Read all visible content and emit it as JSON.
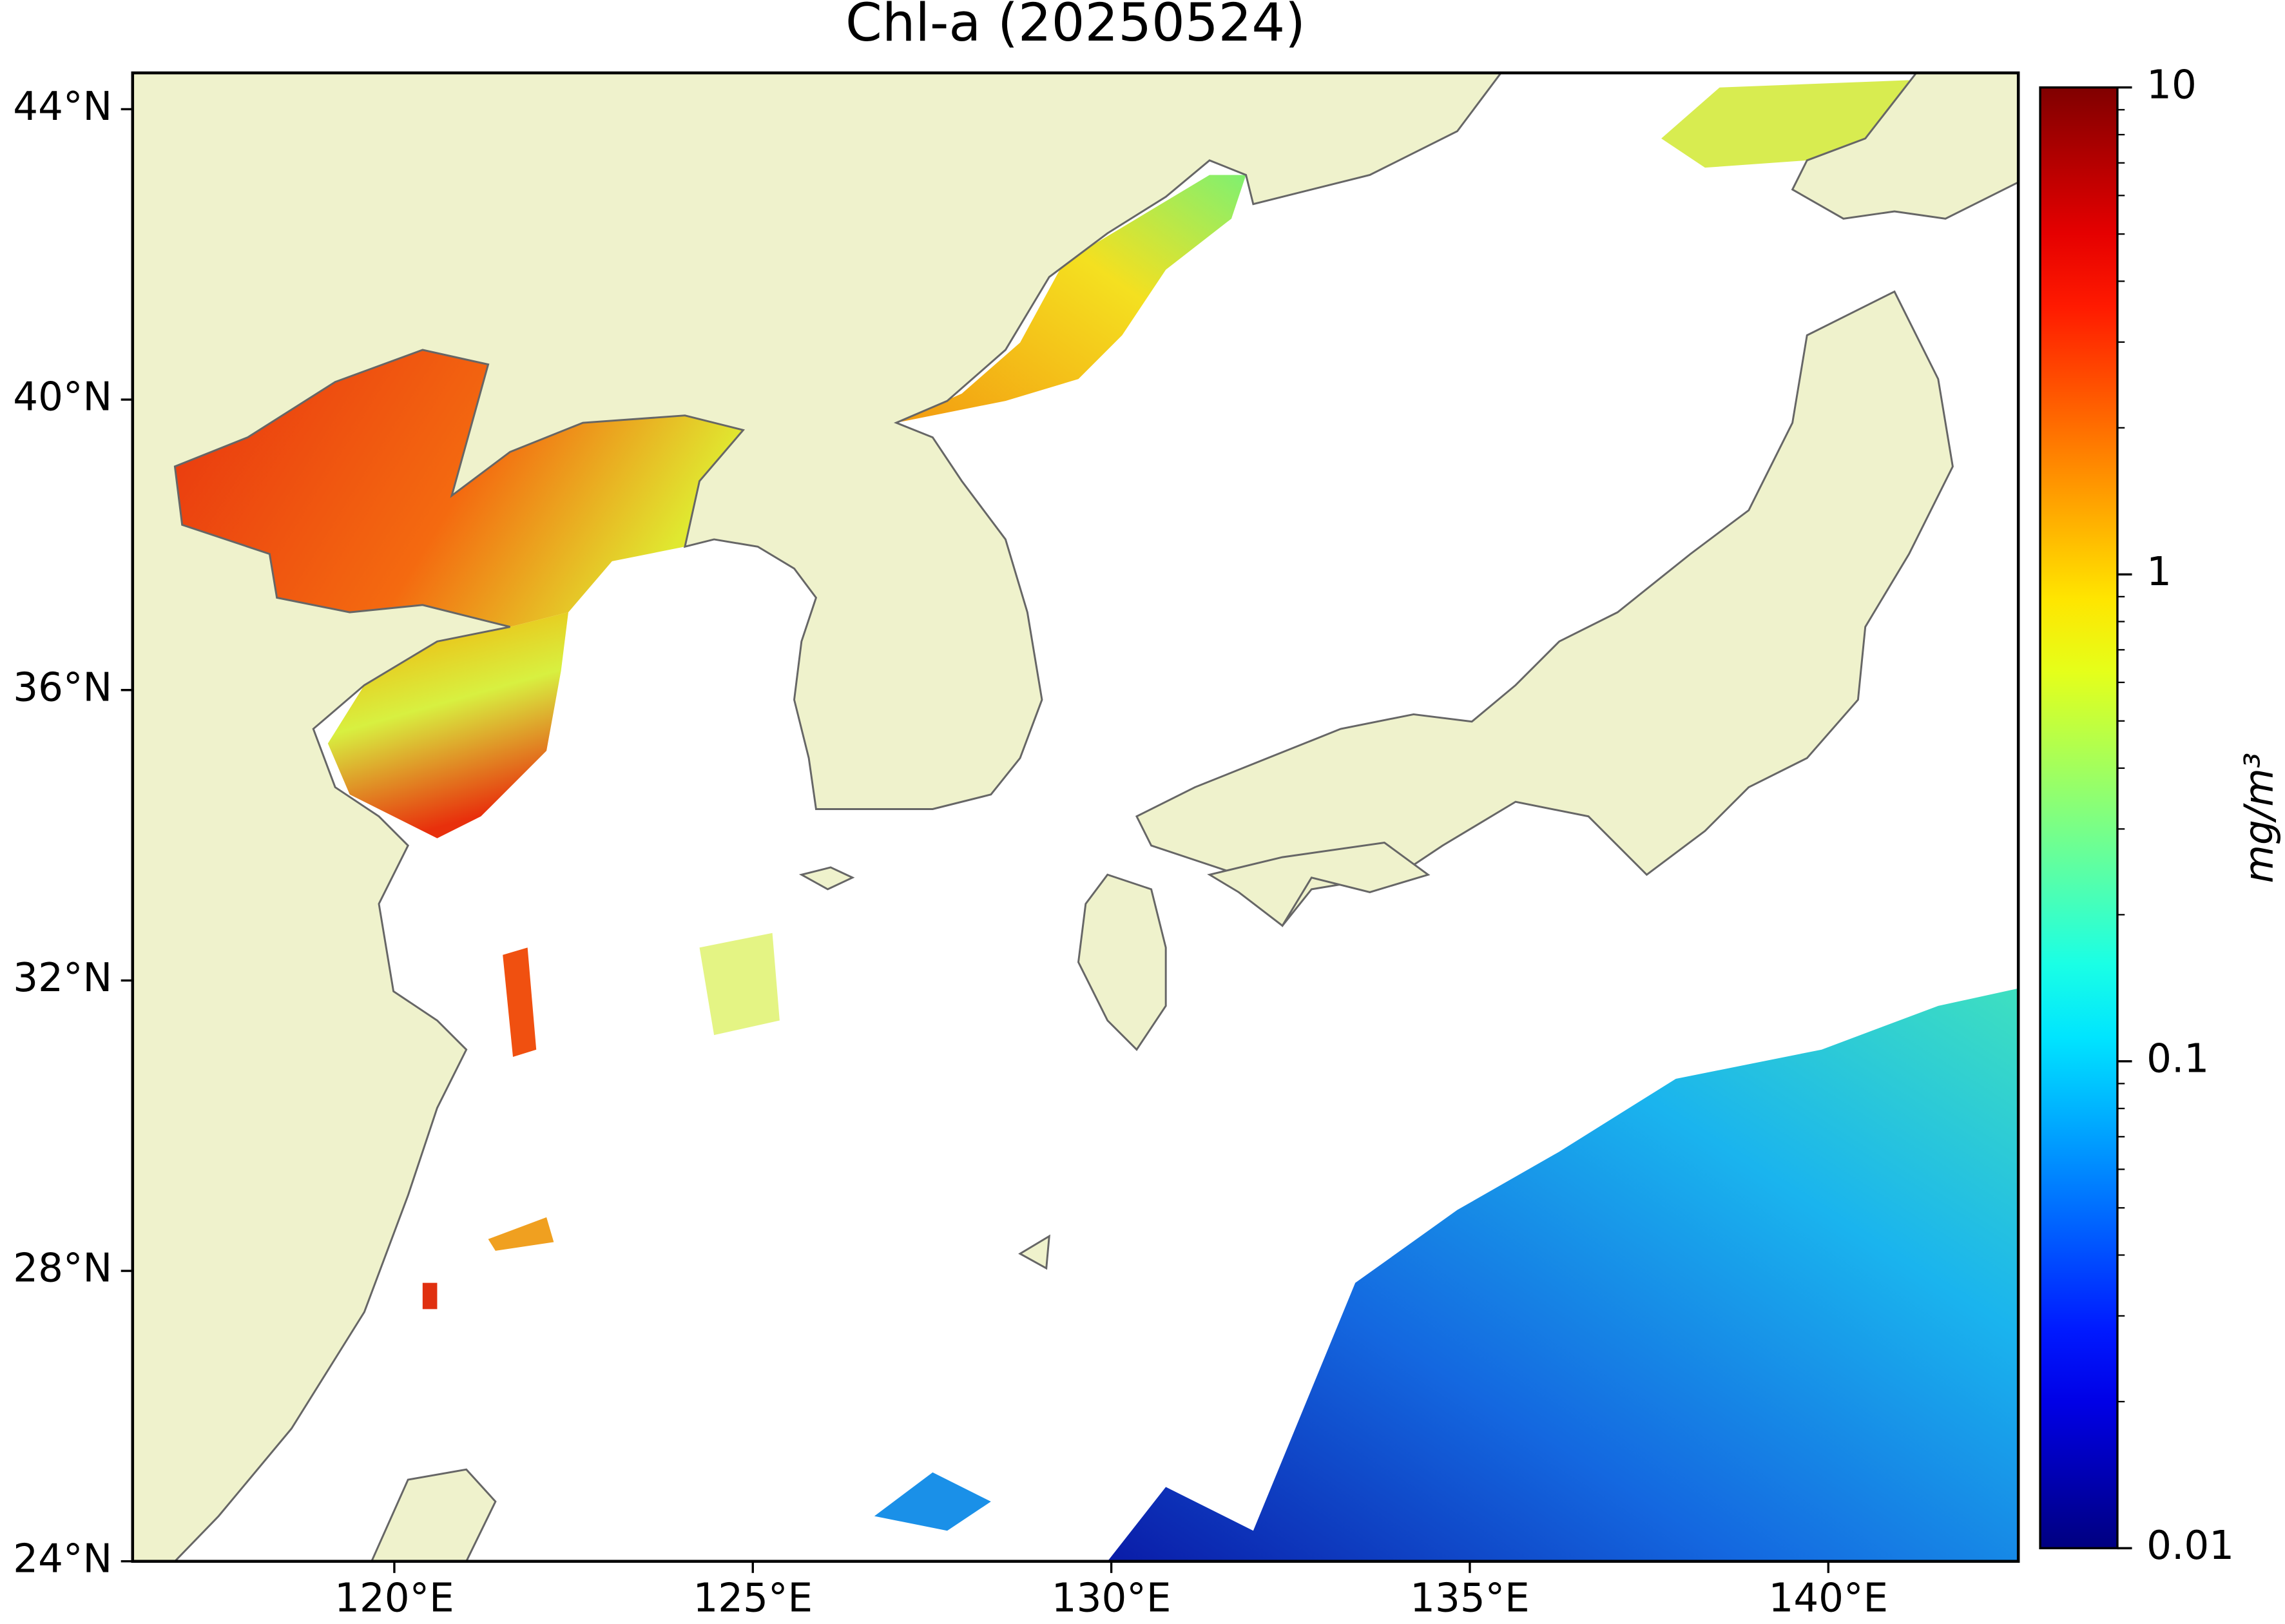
{
  "map": {
    "title": "Chl-a (20250524)",
    "lonlim": [
      116.35,
      142.65
    ],
    "latlim": [
      24,
      44.5
    ],
    "lonticks": [
      {
        "value": 120,
        "label": "120°E"
      },
      {
        "value": 125,
        "label": "125°E"
      },
      {
        "value": 130,
        "label": "130°E"
      },
      {
        "value": 135,
        "label": "135°E"
      },
      {
        "value": 140,
        "label": "140°E"
      }
    ],
    "latticks": [
      {
        "value": 24,
        "label": "24°N"
      },
      {
        "value": 28,
        "label": "28°N"
      },
      {
        "value": 32,
        "label": "32°N"
      },
      {
        "value": 36,
        "label": "36°N"
      },
      {
        "value": 40,
        "label": "40°N"
      },
      {
        "value": 44,
        "label": "44°N"
      }
    ],
    "land_color": "#eff2cc",
    "colorbar": {
      "label": "mg/m³",
      "scale": "log",
      "colormap": "jet",
      "lim": [
        0.01,
        10
      ],
      "ticks": [
        0.01,
        0.1,
        1,
        10
      ]
    }
  }
}
